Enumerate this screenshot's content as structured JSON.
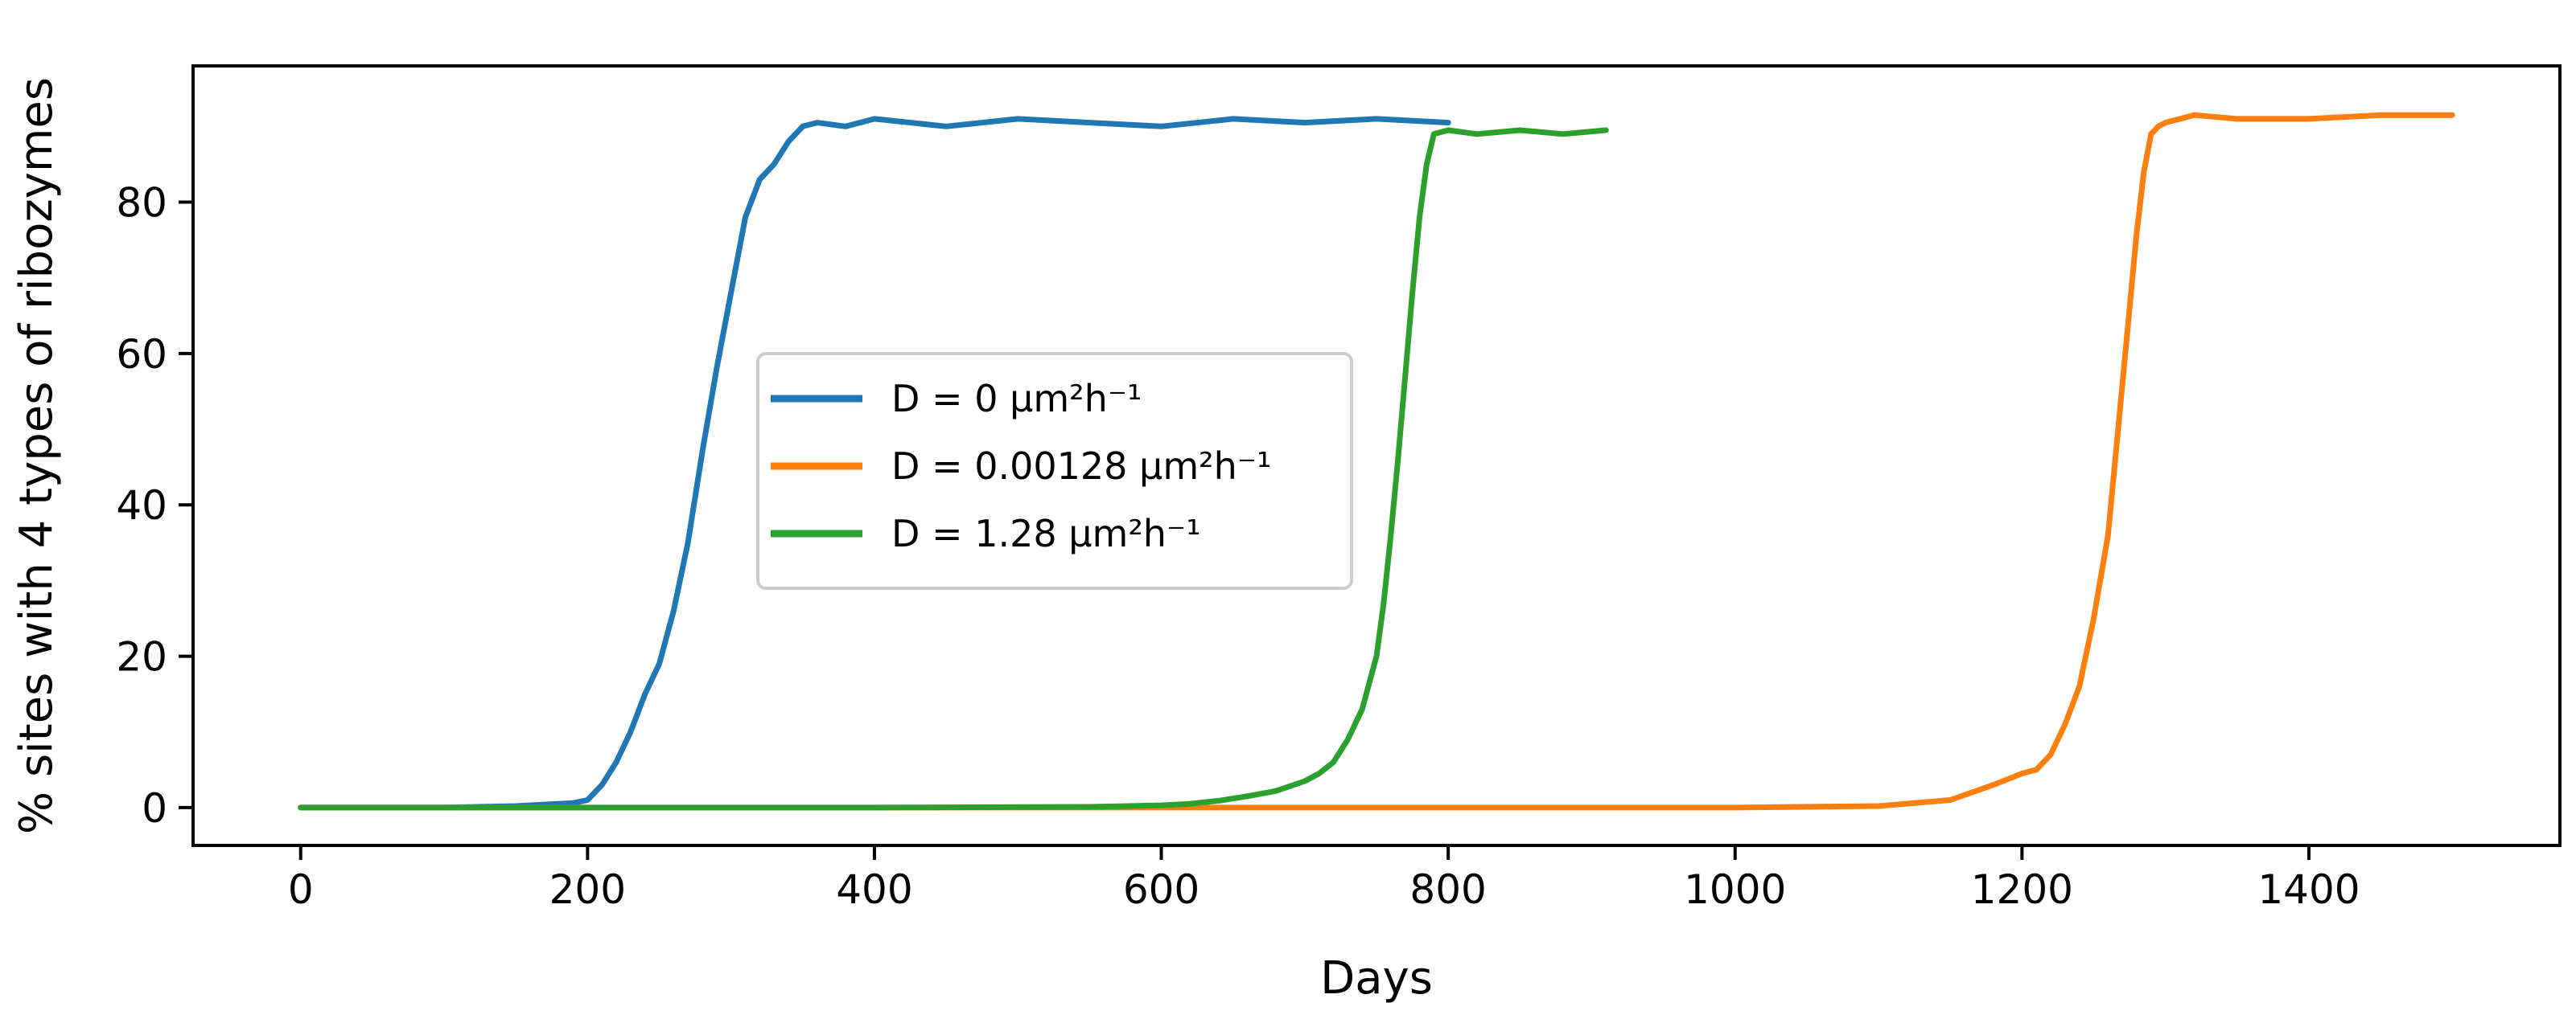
{
  "chart_data": {
    "type": "line",
    "title": "",
    "xlabel": "Days",
    "ylabel": "% sites with 4 types of ribozymes",
    "xlim": [
      -75,
      1575
    ],
    "ylim": [
      -5,
      98
    ],
    "xticks": [
      0,
      200,
      400,
      600,
      800,
      1000,
      1200,
      1400
    ],
    "yticks": [
      0,
      20,
      40,
      60,
      80
    ],
    "grid": false,
    "legend_position": "center-left",
    "series": [
      {
        "name": "D = 0 μm²h⁻¹",
        "legend_text": "D = 0 μm²h⁻¹",
        "color": "#1f77b4",
        "x": [
          0,
          100,
          150,
          190,
          200,
          210,
          220,
          230,
          240,
          250,
          260,
          270,
          280,
          290,
          300,
          310,
          320,
          330,
          340,
          350,
          360,
          380,
          400,
          450,
          500,
          550,
          600,
          650,
          700,
          750,
          800
        ],
        "y": [
          0,
          0,
          0.2,
          0.6,
          1,
          3,
          6,
          10,
          15,
          19,
          26,
          35,
          47,
          58,
          68,
          78,
          83,
          85,
          88,
          90,
          90.5,
          90,
          91,
          90,
          91,
          90.5,
          90,
          91,
          90.5,
          91,
          90.5
        ]
      },
      {
        "name": "D = 0.00128 μm²h⁻¹",
        "legend_text": "D = 0.00128 μm²h⁻¹",
        "color": "#ff7f0e",
        "x": [
          0,
          200,
          400,
          600,
          800,
          1000,
          1100,
          1150,
          1180,
          1200,
          1210,
          1220,
          1230,
          1240,
          1250,
          1260,
          1265,
          1270,
          1275,
          1280,
          1285,
          1290,
          1295,
          1300,
          1320,
          1350,
          1400,
          1450,
          1500
        ],
        "y": [
          0,
          0,
          0,
          0,
          0,
          0,
          0.2,
          1,
          3,
          4.5,
          5,
          7,
          11,
          16,
          25,
          36,
          46,
          56,
          66,
          76,
          84,
          89,
          90,
          90.5,
          91.5,
          91,
          91,
          91.5,
          91.5
        ]
      },
      {
        "name": "D = 1.28 μm²h⁻¹",
        "legend_text": "D = 1.28 μm²h⁻¹",
        "color": "#2ca02c",
        "x": [
          0,
          200,
          400,
          550,
          600,
          620,
          640,
          660,
          680,
          700,
          710,
          720,
          730,
          740,
          750,
          755,
          760,
          765,
          770,
          775,
          780,
          785,
          790,
          800,
          820,
          850,
          880,
          910
        ],
        "y": [
          0,
          0,
          0,
          0.1,
          0.3,
          0.5,
          0.9,
          1.5,
          2.2,
          3.5,
          4.5,
          6,
          9,
          13,
          20,
          27,
          36,
          46,
          57,
          68,
          78,
          85,
          89,
          89.5,
          89,
          89.5,
          89,
          89.5
        ]
      }
    ]
  }
}
